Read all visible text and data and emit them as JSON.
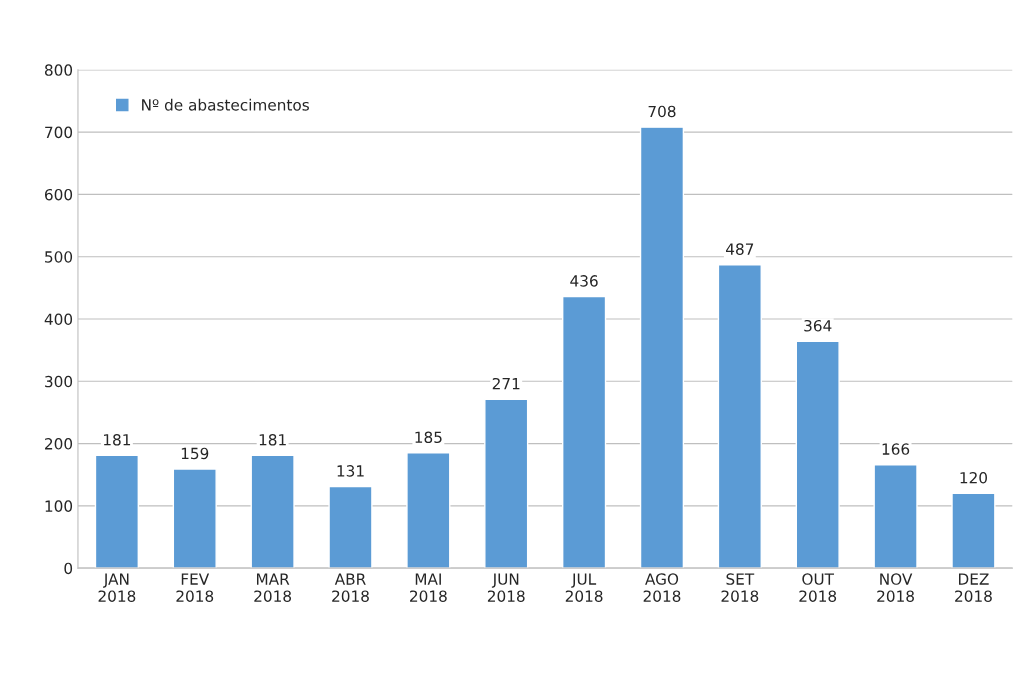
{
  "chart_data": {
    "type": "bar",
    "categories": [
      "JAN\n2018",
      "FEV\n2018",
      "MAR\n2018",
      "ABR\n2018",
      "MAI\n2018",
      "JUN\n2018",
      "JUL\n2018",
      "AGO\n2018",
      "SET\n2018",
      "OUT\n2018",
      "NOV\n2018",
      "DEZ\n2018"
    ],
    "series": [
      {
        "name": "Nº de abastecimentos",
        "color": "#5b9bd5",
        "values": [
          181,
          159,
          181,
          131,
          185,
          271,
          436,
          708,
          487,
          364,
          166,
          120
        ]
      }
    ],
    "ylim": [
      0,
      800
    ],
    "yticks": [
      0,
      100,
      200,
      300,
      400,
      500,
      600,
      700,
      800
    ],
    "grid": "y",
    "legend": "top left",
    "data_labels": true
  }
}
